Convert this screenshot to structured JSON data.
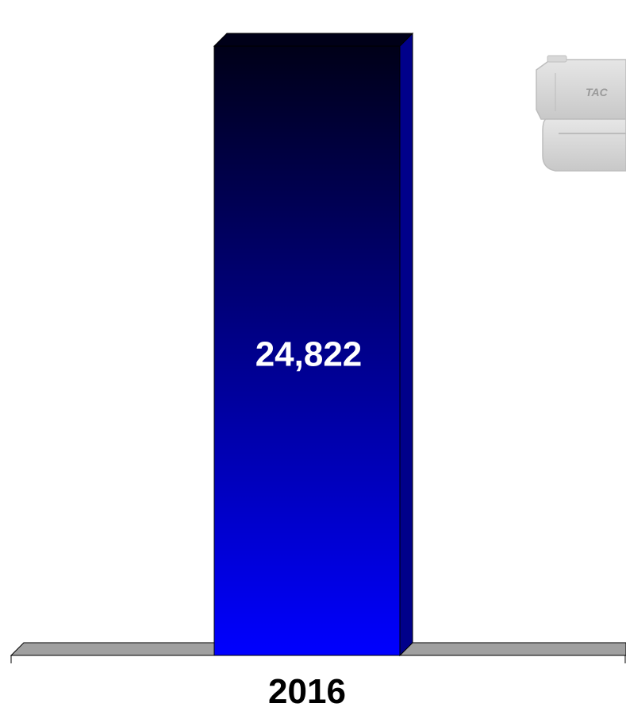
{
  "chart_data": {
    "type": "bar",
    "categories": [
      "2016"
    ],
    "values": [
      24822
    ],
    "value_labels": [
      "24,822"
    ],
    "title": "",
    "xlabel": "",
    "ylabel": "",
    "ylim": [
      0,
      26700
    ],
    "grid": false,
    "legend": "none",
    "style": "3d",
    "colors": {
      "bar_top": "#000018",
      "bar_bottom": "#0000ff",
      "bar_side": "#00008a",
      "floor": "#a0a0a0",
      "value_label": "#ffffff",
      "tick_label": "#000000"
    }
  },
  "decoration": {
    "image_icon": "handgun-icon"
  }
}
